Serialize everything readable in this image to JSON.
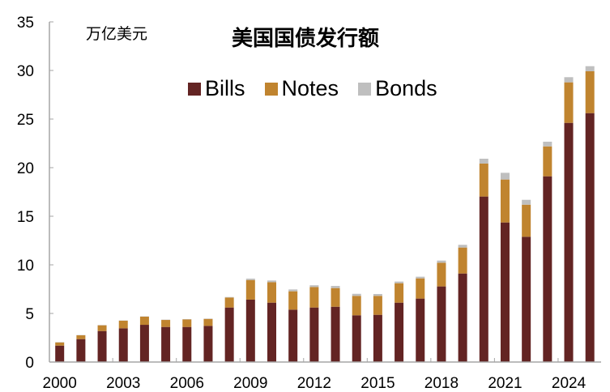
{
  "chart_data": {
    "type": "bar",
    "stacked": true,
    "title": "美国国债发行额",
    "unit_label": "万亿美元",
    "xlabel": "",
    "ylabel": "万亿美元",
    "ylim": [
      0,
      35
    ],
    "yticks": [
      0,
      5,
      10,
      15,
      20,
      25,
      30,
      35
    ],
    "xtick_labels": [
      "2000",
      "2003",
      "2006",
      "2009",
      "2012",
      "2015",
      "2018",
      "2021",
      "2024"
    ],
    "grid": false,
    "legend_position": "top-center",
    "categories": [
      "2000",
      "2001",
      "2002",
      "2003",
      "2004",
      "2005",
      "2006",
      "2007",
      "2008",
      "2009",
      "2010",
      "2011",
      "2012",
      "2013",
      "2014",
      "2015",
      "2016",
      "2017",
      "2018",
      "2019",
      "2020",
      "2021",
      "2022",
      "2023",
      "2024",
      "2025"
    ],
    "series": [
      {
        "name": "Bills",
        "color": "#632423",
        "values": [
          1.69,
          2.36,
          3.19,
          3.47,
          3.83,
          3.61,
          3.61,
          3.72,
          5.61,
          6.42,
          6.11,
          5.39,
          5.61,
          5.69,
          4.81,
          4.86,
          6.11,
          6.53,
          7.78,
          9.11,
          17.03,
          14.36,
          12.89,
          19.11,
          24.61,
          25.61
        ]
      },
      {
        "name": "Notes",
        "color": "#C0842F",
        "values": [
          0.33,
          0.39,
          0.59,
          0.78,
          0.84,
          0.72,
          0.78,
          0.72,
          1.03,
          2.02,
          2.11,
          1.89,
          2.11,
          1.92,
          2.0,
          1.95,
          2.0,
          2.08,
          2.44,
          2.67,
          3.39,
          4.42,
          3.3,
          3.08,
          4.17,
          4.31
        ]
      },
      {
        "name": "Bonds",
        "color": "#BFBFBF",
        "values": [
          0.03,
          0.03,
          0.03,
          0.03,
          0.03,
          0.03,
          0.03,
          0.03,
          0.05,
          0.14,
          0.17,
          0.19,
          0.18,
          0.22,
          0.21,
          0.19,
          0.17,
          0.17,
          0.22,
          0.28,
          0.5,
          0.69,
          0.5,
          0.48,
          0.53,
          0.52
        ]
      }
    ]
  },
  "labels": {
    "unit": "万亿美元",
    "title": "美国国债发行额",
    "legend": [
      "Bills",
      "Notes",
      "Bonds"
    ]
  }
}
